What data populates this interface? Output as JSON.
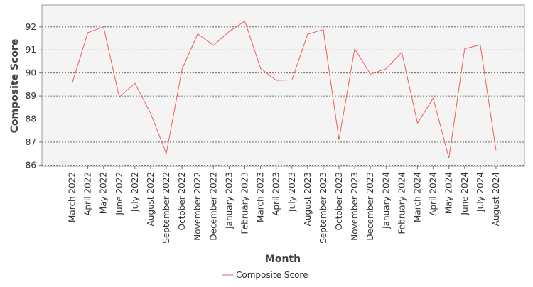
{
  "chart_data": {
    "type": "line",
    "title": "",
    "xlabel": "Month",
    "ylabel": "Composite Score",
    "ylim": [
      85.95,
      92.95
    ],
    "yticks": [
      86,
      87,
      88,
      89,
      90,
      91,
      92
    ],
    "grid": true,
    "legend": "bottom-center",
    "categories": [
      "March 2022",
      "April 2022",
      "May 2022",
      "June 2022",
      "July 2022",
      "August 2022",
      "September 2022",
      "October 2022",
      "November 2022",
      "December 2022",
      "January 2023",
      "February 2023",
      "March 2023",
      "April 2023",
      "July 2023",
      "August 2023",
      "September 2023",
      "October 2023",
      "November 2023",
      "December 2023",
      "January 2024",
      "February 2024",
      "March 2024",
      "April 2024",
      "May 2024",
      "June 2024",
      "July 2024",
      "August 2024"
    ],
    "series": [
      {
        "name": "Composite Score",
        "color": "#f25c5c",
        "values": [
          89.55,
          91.75,
          92.0,
          88.95,
          89.55,
          88.25,
          86.5,
          90.15,
          91.7,
          91.2,
          91.8,
          92.25,
          90.2,
          89.68,
          89.7,
          91.68,
          91.88,
          87.1,
          91.05,
          89.95,
          90.18,
          90.9,
          87.82,
          88.9,
          86.3,
          91.05,
          91.22,
          86.65
        ]
      }
    ]
  }
}
